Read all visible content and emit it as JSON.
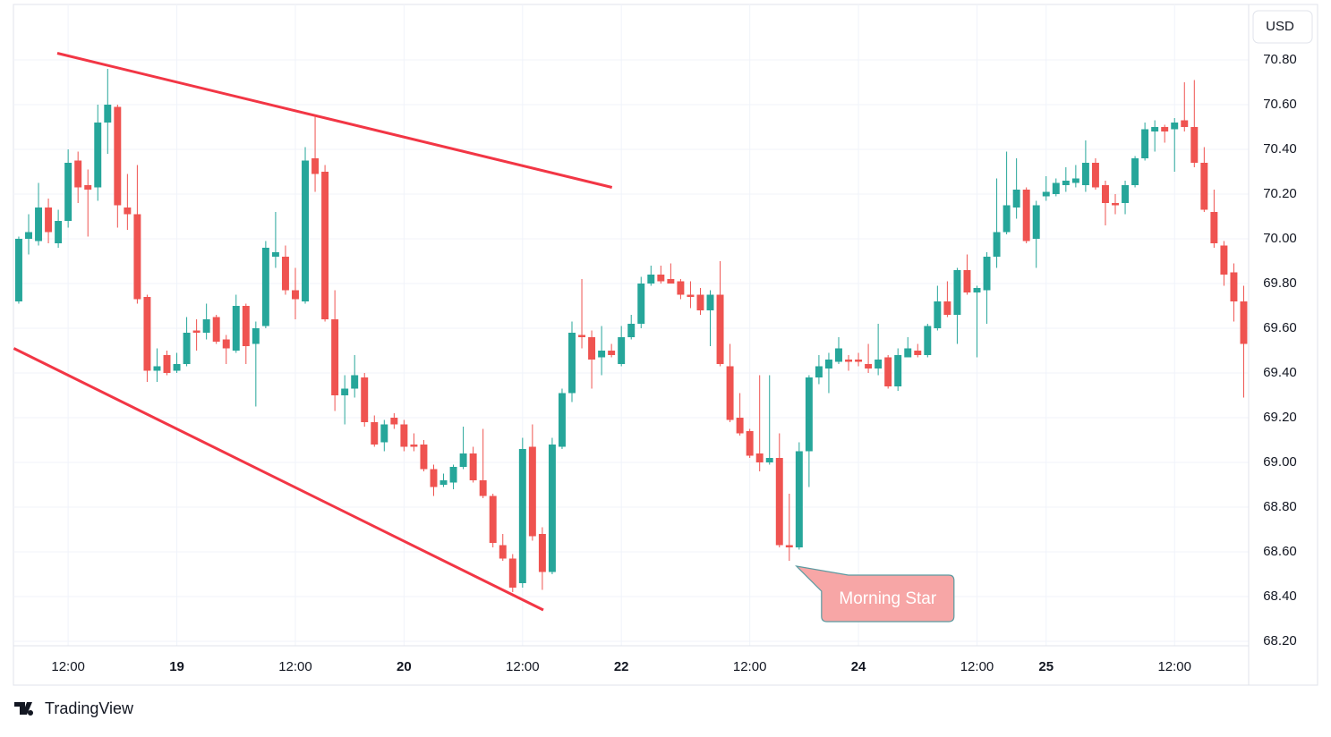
{
  "chart_data": {
    "type": "candlestick",
    "currency": "USD",
    "brand": "TradingView",
    "up_color": "#26a69a",
    "down_color": "#ef5350",
    "grid": true,
    "xlim": [
      -0.54,
      124.5
    ],
    "ylim": [
      68.18,
      71.048
    ],
    "xticks": [
      {
        "value": 5,
        "label": "12:00"
      },
      {
        "value": 16,
        "label": "19"
      },
      {
        "value": 28,
        "label": "12:00"
      },
      {
        "value": 39,
        "label": "20"
      },
      {
        "value": 51,
        "label": "12:00"
      },
      {
        "value": 61,
        "label": "22"
      },
      {
        "value": 74,
        "label": "12:00"
      },
      {
        "value": 85,
        "label": "24"
      },
      {
        "value": 97,
        "label": "12:00"
      },
      {
        "value": 104,
        "label": "25"
      },
      {
        "value": 117,
        "label": "12:00"
      }
    ],
    "yticks": [
      {
        "value": 68.2,
        "label": "68.20"
      },
      {
        "value": 68.4,
        "label": "68.40"
      },
      {
        "value": 68.6,
        "label": "68.60"
      },
      {
        "value": 68.8,
        "label": "68.80"
      },
      {
        "value": 69,
        "label": "69.00"
      },
      {
        "value": 69.2,
        "label": "69.20"
      },
      {
        "value": 69.4,
        "label": "69.40"
      },
      {
        "value": 69.6,
        "label": "69.60"
      },
      {
        "value": 69.8,
        "label": "69.80"
      },
      {
        "value": 70,
        "label": "70.00"
      },
      {
        "value": 70.2,
        "label": "70.20"
      },
      {
        "value": 70.4,
        "label": "70.40"
      },
      {
        "value": 70.6,
        "label": "70.60"
      },
      {
        "value": 70.8,
        "label": "70.80"
      }
    ],
    "open": [
      69.72,
      70.0,
      69.99,
      70.14,
      69.98,
      70.08,
      70.35,
      70.24,
      70.23,
      70.52,
      70.59,
      70.14,
      70.11,
      69.74,
      69.41,
      69.48,
      69.41,
      69.44,
      69.59,
      69.58,
      69.65,
      69.55,
      69.5,
      69.7,
      69.53,
      69.61,
      69.92,
      69.92,
      69.77,
      69.72,
      70.36,
      70.3,
      69.64,
      69.3,
      69.33,
      69.38,
      69.18,
      69.09,
      69.2,
      69.17,
      69.08,
      69.08,
      68.97,
      68.9,
      68.91,
      68.98,
      69.04,
      68.92,
      68.85,
      68.63,
      68.57,
      68.46,
      69.07,
      68.68,
      68.51,
      69.07,
      69.31,
      69.57,
      69.56,
      69.47,
      69.5,
      69.44,
      69.56,
      69.62,
      69.8,
      69.84,
      69.82,
      69.81,
      69.75,
      69.75,
      69.68,
      69.75,
      69.43,
      69.2,
      69.14,
      69.04,
      69.0,
      69.02,
      68.63,
      68.62,
      69.05,
      69.38,
      69.42,
      69.45,
      69.46,
      69.46,
      69.44,
      69.42,
      69.47,
      69.34,
      69.47,
      69.5,
      69.48,
      69.6,
      69.72,
      69.66,
      69.86,
      69.76,
      69.77,
      69.92,
      70.03,
      70.14,
      70.22,
      70.0,
      70.19,
      70.2,
      70.24,
      70.25,
      70.24,
      70.34,
      70.24,
      70.16,
      70.16,
      70.24,
      70.36,
      70.48,
      70.5,
      70.49,
      70.53,
      70.5,
      70.34,
      70.12,
      69.97,
      69.85,
      69.72
    ],
    "high": [
      70.01,
      70.11,
      70.25,
      70.18,
      70.13,
      70.4,
      70.39,
      70.31,
      70.6,
      70.76,
      70.6,
      70.29,
      70.33,
      69.75,
      69.51,
      69.5,
      69.49,
      69.65,
      69.64,
      69.71,
      69.66,
      69.57,
      69.75,
      69.71,
      69.63,
      69.99,
      70.12,
      69.97,
      69.87,
      70.41,
      70.55,
      70.33,
      69.77,
      69.39,
      69.48,
      69.4,
      69.21,
      69.19,
      69.22,
      69.19,
      69.13,
      69.1,
      68.99,
      68.95,
      68.99,
      69.16,
      69.07,
      69.15,
      68.86,
      68.68,
      68.59,
      69.11,
      69.17,
      68.71,
      69.11,
      69.33,
      69.63,
      69.82,
      69.59,
      69.61,
      69.53,
      69.61,
      69.66,
      69.83,
      69.88,
      69.88,
      69.89,
      69.82,
      69.81,
      69.78,
      69.77,
      69.9,
      69.53,
      69.31,
      69.15,
      69.39,
      69.39,
      69.13,
      68.86,
      69.09,
      69.39,
      69.48,
      69.49,
      69.56,
      69.48,
      69.49,
      69.53,
      69.62,
      69.48,
      69.51,
      69.56,
      69.53,
      69.62,
      69.79,
      69.81,
      69.87,
      69.93,
      69.79,
      69.94,
      70.27,
      70.39,
      70.36,
      70.23,
      70.17,
      70.28,
      70.27,
      70.32,
      70.33,
      70.44,
      70.36,
      70.26,
      70.2,
      70.26,
      70.37,
      70.52,
      70.53,
      70.51,
      70.54,
      70.7,
      70.71,
      70.41,
      70.22,
      69.99,
      69.89,
      69.79
    ],
    "low": [
      69.71,
      69.93,
      69.97,
      69.98,
      69.96,
      70.05,
      70.16,
      70.01,
      70.17,
      70.38,
      70.05,
      70.04,
      69.71,
      69.36,
      69.36,
      69.39,
      69.4,
      69.43,
      69.5,
      69.55,
      69.53,
      69.44,
      69.49,
      69.44,
      69.25,
      69.6,
      69.87,
      69.75,
      69.64,
      69.71,
      70.21,
      69.63,
      69.23,
      69.17,
      69.29,
      69.16,
      69.07,
      69.05,
      69.15,
      69.05,
      69.05,
      68.96,
      68.85,
      68.89,
      68.88,
      68.97,
      68.91,
      68.84,
      68.62,
      68.56,
      68.42,
      68.44,
      68.65,
      68.43,
      68.5,
      69.06,
      69.27,
      69.51,
      69.33,
      69.39,
      69.47,
      69.43,
      69.55,
      69.6,
      69.79,
      69.8,
      69.8,
      69.73,
      69.69,
      69.66,
      69.52,
      69.43,
      69.18,
      69.12,
      69.02,
      68.96,
      68.99,
      68.62,
      68.56,
      68.61,
      68.89,
      69.35,
      69.31,
      69.44,
      69.41,
      69.43,
      69.4,
      69.39,
      69.33,
      69.32,
      69.47,
      69.47,
      69.47,
      69.59,
      69.65,
      69.53,
      69.75,
      69.47,
      69.62,
      69.87,
      70.02,
      70.09,
      69.98,
      69.87,
      70.17,
      70.19,
      70.21,
      70.23,
      70.21,
      70.22,
      70.06,
      70.11,
      70.11,
      70.23,
      70.35,
      70.39,
      70.43,
      70.3,
      70.48,
      70.32,
      70.12,
      69.96,
      69.79,
      69.63,
      69.29
    ],
    "close": [
      70.0,
      70.03,
      70.14,
      70.03,
      70.08,
      70.34,
      70.23,
      70.22,
      70.52,
      70.6,
      70.15,
      70.11,
      69.73,
      69.41,
      69.43,
      69.4,
      69.44,
      69.58,
      69.58,
      69.64,
      69.54,
      69.51,
      69.7,
      69.52,
      69.6,
      69.96,
      69.94,
      69.77,
      69.73,
      70.35,
      70.29,
      69.64,
      69.3,
      69.33,
      69.39,
      69.18,
      69.08,
      69.17,
      69.17,
      69.07,
      69.07,
      68.97,
      68.89,
      68.92,
      68.98,
      69.04,
      68.92,
      68.85,
      68.64,
      68.57,
      68.44,
      69.06,
      68.67,
      68.51,
      69.08,
      69.31,
      69.58,
      69.56,
      69.46,
      69.5,
      69.48,
      69.56,
      69.62,
      69.8,
      69.84,
      69.81,
      69.8,
      69.75,
      69.74,
      69.68,
      69.75,
      69.44,
      69.19,
      69.13,
      69.03,
      69.0,
      69.02,
      68.63,
      68.62,
      69.05,
      69.38,
      69.43,
      69.46,
      69.51,
      69.45,
      69.45,
      69.42,
      69.46,
      69.34,
      69.48,
      69.51,
      69.48,
      69.61,
      69.72,
      69.66,
      69.86,
      69.76,
      69.78,
      69.92,
      70.03,
      70.15,
      70.22,
      69.99,
      70.15,
      70.21,
      70.25,
      70.26,
      70.27,
      70.34,
      70.23,
      70.16,
      70.15,
      70.24,
      70.36,
      70.49,
      70.5,
      70.48,
      70.52,
      70.5,
      70.34,
      70.13,
      69.98,
      69.84,
      69.72,
      69.53
    ],
    "trendlines": [
      {
        "color": "#f23645",
        "x": [
          3.9,
          60.05
        ],
        "y": [
          70.83,
          70.23
        ]
      },
      {
        "color": "#f23645",
        "x": [
          -0.5,
          53.1
        ],
        "y": [
          69.51,
          68.34
        ]
      }
    ],
    "annotation": {
      "text": "Morning Star",
      "x": 78,
      "y": 68.56,
      "color": "#f7a6a6",
      "border": "#5b9aa0"
    }
  }
}
